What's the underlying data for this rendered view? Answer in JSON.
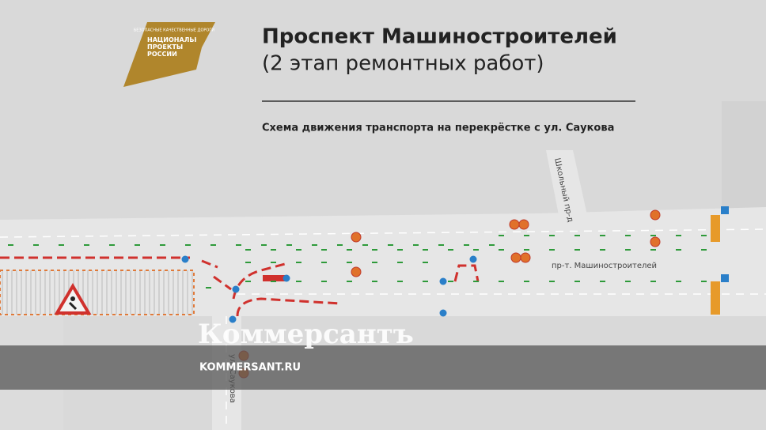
{
  "header": {
    "logo_top": "БЕЗОПАСНЫЕ КАЧЕСТВЕННЫЕ ДОРОГИ",
    "logo_main": "НАЦИОНАЛЬНЫЕ ПРОЕКТЫ РОССИИ",
    "title": "Проспект Машиностроителей",
    "subtitle": "(2 этап ремонтных работ)",
    "caption": "Схема движения транспорта на перекрёстке с ул. Саукова"
  },
  "streets": [
    "Школьный пр-д",
    "пр-т. Машиностроителей",
    "ул. Саукова"
  ],
  "watermark": {
    "brand": "Коммерсантъ",
    "url": "KOMMERSANT.RU"
  }
}
